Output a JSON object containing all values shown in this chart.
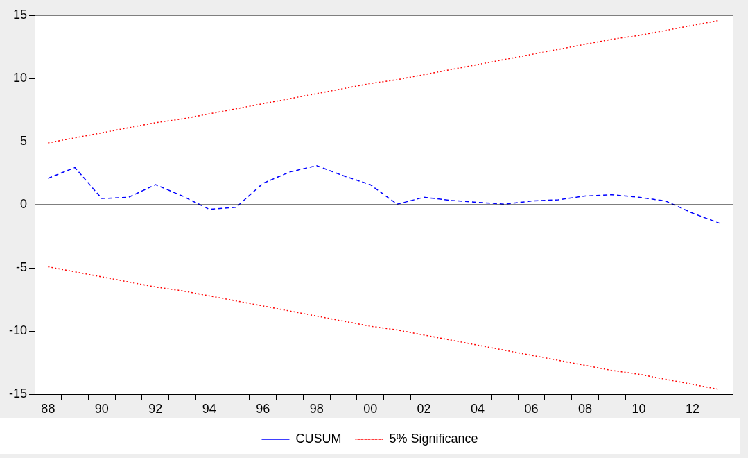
{
  "chart_data": {
    "type": "line",
    "categories": [
      "88",
      null,
      "90",
      null,
      "92",
      null,
      "94",
      null,
      "96",
      null,
      "98",
      null,
      "00",
      null,
      "02",
      null,
      "04",
      null,
      "06",
      null,
      "08",
      null,
      "10",
      null,
      "12",
      null
    ],
    "series": [
      {
        "name": "CUSUM",
        "color": "#0000ff",
        "line_style": "dashed",
        "values": [
          2.1,
          2.95,
          0.5,
          0.6,
          1.6,
          0.7,
          -0.35,
          -0.2,
          1.7,
          2.6,
          3.1,
          2.3,
          1.6,
          0.05,
          0.6,
          0.35,
          0.2,
          0.05,
          0.3,
          0.4,
          0.7,
          0.8,
          0.6,
          0.3,
          -0.65,
          -1.45
        ]
      },
      {
        "name": "5% Significance",
        "color": "#ff0000",
        "line_style": "dotted",
        "values": [
          4.9,
          5.3,
          5.7,
          6.1,
          6.5,
          6.8,
          7.2,
          7.6,
          8.0,
          8.4,
          8.8,
          9.2,
          9.6,
          9.9,
          10.3,
          10.7,
          11.1,
          11.5,
          11.9,
          12.3,
          12.7,
          13.1,
          13.4,
          13.8,
          14.2,
          14.6
        ]
      },
      {
        "color": "#ff0000",
        "line_style": "dotted",
        "values": [
          -4.9,
          -5.3,
          -5.7,
          -6.1,
          -6.5,
          -6.8,
          -7.2,
          -7.6,
          -8.0,
          -8.4,
          -8.8,
          -9.2,
          -9.6,
          -9.9,
          -10.3,
          -10.7,
          -11.1,
          -11.5,
          -11.9,
          -12.3,
          -12.7,
          -13.1,
          -13.4,
          -13.8,
          -14.2,
          -14.6
        ]
      }
    ],
    "ylim": [
      -15,
      15
    ],
    "yticks": [
      -15,
      -10,
      -5,
      0,
      5,
      10,
      15
    ],
    "ref_lines": [
      {
        "axis": "y",
        "value": 0,
        "color": "#000000"
      }
    ],
    "grid": false,
    "legend": "bottom",
    "marker": "none"
  }
}
